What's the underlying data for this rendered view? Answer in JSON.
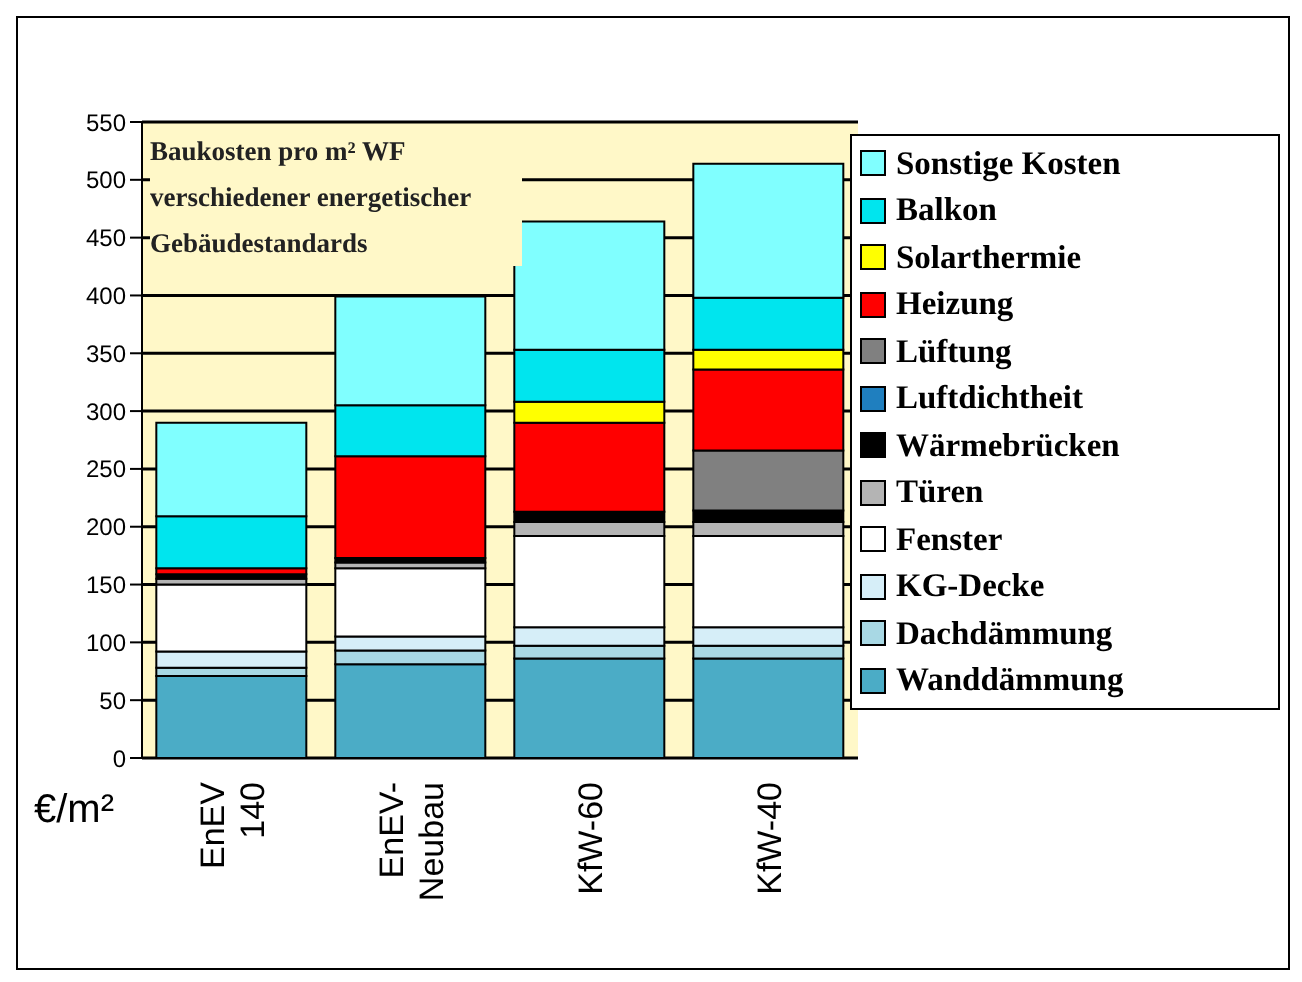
{
  "chart_data": {
    "type": "bar",
    "title": "Baukosten pro m² WF verschiedener energetischer Gebäudestandards",
    "ylabel": "€/m²",
    "categories": [
      "EnEV 140",
      "EnEV-Neubau",
      "KfW-60",
      "KfW-40"
    ],
    "stacked": true,
    "ylim": [
      0,
      550
    ],
    "yticks": [
      0,
      50,
      100,
      150,
      200,
      250,
      300,
      350,
      400,
      450,
      500,
      550
    ],
    "grid": "y",
    "legend": "right",
    "series": [
      {
        "name": "Wanddämmung",
        "color": "#4bacc6",
        "values": [
          71,
          81,
          86,
          86
        ]
      },
      {
        "name": "Dachdämmung",
        "color": "#a8d8e4",
        "values": [
          7,
          12,
          11,
          11
        ]
      },
      {
        "name": "KG-Decke",
        "color": "#d6eef8",
        "values": [
          14,
          12,
          16,
          16
        ]
      },
      {
        "name": "Fenster",
        "color": "#ffffff",
        "values": [
          58,
          59,
          79,
          79
        ]
      },
      {
        "name": "Türen",
        "color": "#b4b4b4",
        "values": [
          5,
          5,
          12,
          12
        ]
      },
      {
        "name": "Wärmebrücken",
        "color": "#000000",
        "values": [
          4,
          4,
          9,
          10
        ]
      },
      {
        "name": "Luftdichtheit",
        "color": "#1f7fbf",
        "values": [
          0,
          0,
          0,
          0
        ]
      },
      {
        "name": "Lüftung",
        "color": "#808080",
        "values": [
          0,
          0,
          0,
          52
        ]
      },
      {
        "name": "Heizung",
        "color": "#ff0000",
        "values": [
          5,
          88,
          77,
          70
        ]
      },
      {
        "name": "Solarthermie",
        "color": "#ffff00",
        "values": [
          0,
          0,
          18,
          17
        ]
      },
      {
        "name": "Balkon",
        "color": "#00e5ee",
        "values": [
          45,
          44,
          45,
          45
        ]
      },
      {
        "name": "Sonstige Kosten",
        "color": "#80ffff",
        "values": [
          81,
          94,
          111,
          116
        ]
      }
    ]
  }
}
